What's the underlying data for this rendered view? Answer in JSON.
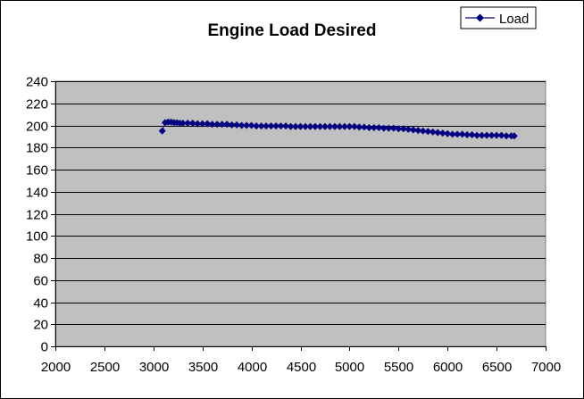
{
  "chart_data": {
    "type": "scatter",
    "title": "Engine Load Desired",
    "xlabel": "",
    "ylabel": "",
    "xlim": [
      2000,
      7000
    ],
    "ylim": [
      0,
      240
    ],
    "x_ticks": [
      2000,
      2500,
      3000,
      3500,
      4000,
      4500,
      5000,
      5500,
      6000,
      6500,
      7000
    ],
    "y_ticks": [
      0,
      20,
      40,
      60,
      80,
      100,
      120,
      140,
      160,
      180,
      200,
      220,
      240
    ],
    "grid": "horizontal",
    "legend_position": "top-right",
    "series": [
      {
        "name": "Load",
        "color": "#000080",
        "marker": "diamond",
        "line": true,
        "points": [
          [
            3090,
            195
          ],
          [
            3120,
            202.5
          ],
          [
            3150,
            203
          ],
          [
            3180,
            203
          ],
          [
            3210,
            202.5
          ],
          [
            3240,
            202.5
          ],
          [
            3270,
            202
          ],
          [
            3300,
            202
          ],
          [
            3350,
            202
          ],
          [
            3400,
            202
          ],
          [
            3450,
            201.5
          ],
          [
            3500,
            201.5
          ],
          [
            3550,
            201.5
          ],
          [
            3600,
            201
          ],
          [
            3650,
            201
          ],
          [
            3700,
            201
          ],
          [
            3750,
            201
          ],
          [
            3800,
            200.5
          ],
          [
            3850,
            200.5
          ],
          [
            3900,
            200
          ],
          [
            3950,
            200
          ],
          [
            4000,
            200
          ],
          [
            4050,
            199.5
          ],
          [
            4100,
            199.5
          ],
          [
            4150,
            199.5
          ],
          [
            4200,
            199.5
          ],
          [
            4250,
            199.5
          ],
          [
            4300,
            199.5
          ],
          [
            4350,
            199.5
          ],
          [
            4400,
            199
          ],
          [
            4450,
            199
          ],
          [
            4500,
            199
          ],
          [
            4550,
            199
          ],
          [
            4600,
            199
          ],
          [
            4650,
            199
          ],
          [
            4700,
            199
          ],
          [
            4750,
            199
          ],
          [
            4800,
            199
          ],
          [
            4850,
            199
          ],
          [
            4900,
            199
          ],
          [
            4950,
            199
          ],
          [
            5000,
            199
          ],
          [
            5050,
            199
          ],
          [
            5100,
            198.5
          ],
          [
            5150,
            198.5
          ],
          [
            5200,
            198
          ],
          [
            5250,
            198
          ],
          [
            5300,
            198
          ],
          [
            5350,
            197.5
          ],
          [
            5400,
            197.5
          ],
          [
            5450,
            197.5
          ],
          [
            5500,
            197
          ],
          [
            5550,
            197
          ],
          [
            5600,
            196.5
          ],
          [
            5650,
            196
          ],
          [
            5700,
            195.5
          ],
          [
            5750,
            195
          ],
          [
            5800,
            194.5
          ],
          [
            5850,
            194
          ],
          [
            5900,
            193.5
          ],
          [
            5950,
            193
          ],
          [
            6000,
            192.5
          ],
          [
            6050,
            192
          ],
          [
            6100,
            192
          ],
          [
            6150,
            192
          ],
          [
            6200,
            191.5
          ],
          [
            6250,
            191.5
          ],
          [
            6300,
            191
          ],
          [
            6350,
            191
          ],
          [
            6400,
            191
          ],
          [
            6450,
            191
          ],
          [
            6500,
            191
          ],
          [
            6550,
            191
          ],
          [
            6600,
            190.5
          ],
          [
            6650,
            190.5
          ],
          [
            6680,
            190.5
          ]
        ]
      }
    ]
  },
  "legend": {
    "label": "Load"
  }
}
